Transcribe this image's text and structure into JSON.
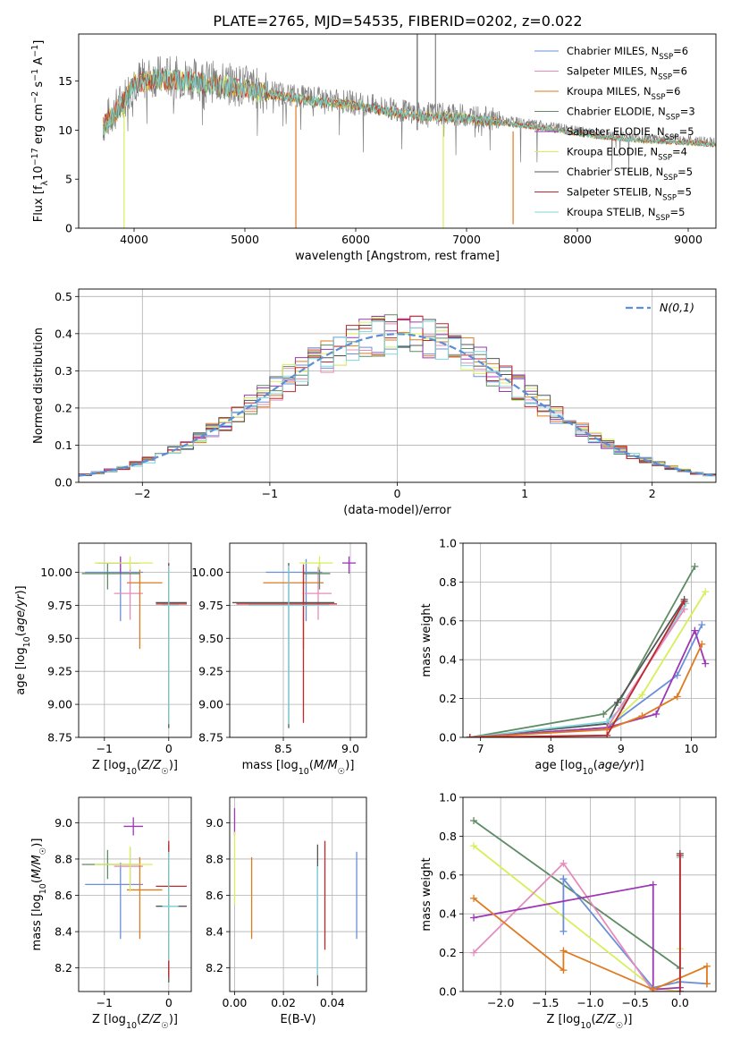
{
  "title": "PLATE=2765, MJD=54535, FIBERID=0202, z=0.022",
  "colors": {
    "chabrier_miles": "#6a8fd8",
    "salpeter_miles": "#e68cbd",
    "kroupa_miles": "#e07a1f",
    "chabrier_elodie": "#5e8c64",
    "salpeter_elodie": "#9c37b5",
    "kroupa_elodie": "#d6ef5a",
    "chabrier_stelib": "#555555",
    "salpeter_stelib": "#c0282d",
    "kroupa_stelib": "#7fd6dc",
    "data": "#808080",
    "gaussian": "#5b8fd6"
  },
  "chart_data": [
    {
      "id": "spectrum",
      "type": "line",
      "title": "PLATE=2765, MJD=54535, FIBERID=0202, z=0.022",
      "xlabel": "wavelength [Angstrom, rest frame]",
      "ylabel": "Flux [fλ10⁻¹⁷ erg cm⁻² s⁻¹ A⁻¹]",
      "xlim": [
        3500,
        9250
      ],
      "ylim": [
        0,
        19.8
      ],
      "xticks": [
        4000,
        5000,
        6000,
        7000,
        8000,
        9000
      ],
      "yticks": [
        0,
        5,
        10,
        15
      ],
      "grid": false,
      "legend_position": "top-right",
      "legend": [
        "Chabrier MILES, N_SSP=6",
        "Salpeter MILES, N_SSP=6",
        "Kroupa MILES, N_SSP=6",
        "Chabrier ELODIE, N_SSP=3",
        "Salpeter ELODIE, N_SSP=5",
        "Kroupa ELODIE, N_SSP=4",
        "Chabrier STELIB, N_SSP=5",
        "Salpeter STELIB, N_SSP=5",
        "Kroupa STELIB, N_SSP=5"
      ],
      "continuum": {
        "x": [
          3750,
          3900,
          4000,
          4200,
          4500,
          4800,
          5000,
          5300,
          5600,
          6000,
          6300,
          6600,
          7000,
          7400,
          7800,
          8200,
          8600,
          9000,
          9250
        ],
        "y": [
          11,
          13,
          15,
          15.5,
          15.3,
          14.8,
          14.5,
          13.8,
          13.3,
          12.8,
          12.2,
          11.7,
          11.5,
          10.9,
          10.3,
          9.6,
          9.2,
          9.0,
          8.8
        ]
      },
      "model_dips": [
        {
          "series": "Kroupa ELODIE",
          "x": 3910,
          "y": 0
        },
        {
          "series": "Kroupa MILES",
          "x": 5460,
          "y": 0
        },
        {
          "series": "Chabrier ELODIE",
          "x": 6790,
          "y": 0
        },
        {
          "series": "Kroupa MILES",
          "x": 7420,
          "y": 0.4
        }
      ]
    },
    {
      "id": "residuals",
      "type": "histogram",
      "xlabel": "(data-model)/error",
      "ylabel": "Normed distribution",
      "xlim": [
        -2.5,
        2.5
      ],
      "ylim": [
        0,
        0.52
      ],
      "xticks": [
        -2,
        -1,
        0,
        1,
        2
      ],
      "yticks": [
        0.0,
        0.1,
        0.2,
        0.3,
        0.4,
        0.5
      ],
      "grid": true,
      "legend_position": "top-right",
      "legend": [
        "N(0,1)"
      ],
      "bin_width": 0.1,
      "bins_from": -2.5,
      "bins_to": 2.5
    },
    {
      "id": "age_vs_Z",
      "type": "errorbar",
      "xlabel": "Z [log10(Z/Z☉)]",
      "ylabel": "age [log10(age/yr)]",
      "xlim": [
        -1.4,
        0.35
      ],
      "ylim": [
        8.75,
        10.22
      ],
      "xticks": [
        -1,
        0
      ],
      "yticks": [
        8.75,
        9.0,
        9.25,
        9.5,
        9.75,
        10.0
      ],
      "grid": true,
      "points": [
        {
          "series": "chabrier_miles",
          "x": -0.75,
          "y": 10.0,
          "xerr": [
            0.55,
            0.35
          ],
          "yerr": [
            0.37,
            0.1
          ]
        },
        {
          "series": "salpeter_miles",
          "x": -0.6,
          "y": 9.84,
          "xerr": [
            0.25,
            0.2
          ],
          "yerr": [
            0.2,
            0.2
          ]
        },
        {
          "series": "kroupa_miles",
          "x": -0.45,
          "y": 9.92,
          "xerr": [
            0.2,
            0.35
          ],
          "yerr": [
            0.5,
            0.1
          ]
        },
        {
          "series": "chabrier_elodie",
          "x": -0.95,
          "y": 9.99,
          "xerr": [
            0.4,
            0.5
          ],
          "yerr": [
            0.12,
            0.08
          ]
        },
        {
          "series": "salpeter_elodie",
          "x": -0.75,
          "y": 10.07,
          "xerr": [
            0.35,
            0.3
          ],
          "yerr": [
            0.08,
            0.05
          ]
        },
        {
          "series": "kroupa_elodie",
          "x": -0.6,
          "y": 10.07,
          "xerr": [
            0.55,
            0.35
          ],
          "yerr": [
            0.05,
            0.05
          ]
        },
        {
          "series": "chabrier_stelib",
          "x": 0.0,
          "y": 9.77,
          "xerr": [
            0.2,
            0.28
          ],
          "yerr": [
            0.95,
            0.3
          ]
        },
        {
          "series": "salpeter_stelib",
          "x": 0.0,
          "y": 9.76,
          "xerr": [
            0.2,
            0.28
          ],
          "yerr": [
            0.9,
            0.3
          ]
        },
        {
          "series": "kroupa_stelib",
          "x": 0.0,
          "y": 9.75,
          "xerr": [
            0.1,
            0.15
          ],
          "yerr": [
            0.9,
            0.3
          ]
        }
      ]
    },
    {
      "id": "age_vs_mass",
      "type": "errorbar",
      "xlabel": "mass [log10(M/M☉)]",
      "ylabel": "",
      "xlim": [
        8.1,
        9.12
      ],
      "ylim": [
        8.75,
        10.22
      ],
      "xticks": [
        8.5,
        9.0
      ],
      "yticks": [
        8.75,
        9.0,
        9.25,
        9.5,
        9.75,
        10.0
      ],
      "grid": true,
      "points": [
        {
          "series": "chabrier_miles",
          "x": 8.67,
          "y": 10.0,
          "xerr": [
            0.3,
            0.12
          ],
          "yerr": [
            0.37,
            0.1
          ]
        },
        {
          "series": "salpeter_miles",
          "x": 8.76,
          "y": 9.84,
          "xerr": [
            0.1,
            0.1
          ],
          "yerr": [
            0.2,
            0.2
          ]
        },
        {
          "series": "kroupa_miles",
          "x": 8.65,
          "y": 9.92,
          "xerr": [
            0.3,
            0.15
          ],
          "yerr": [
            0.5,
            0.1
          ]
        },
        {
          "series": "chabrier_elodie",
          "x": 8.77,
          "y": 9.99,
          "xerr": [
            0.12,
            0.08
          ],
          "yerr": [
            0.12,
            0.08
          ]
        },
        {
          "series": "salpeter_elodie",
          "x": 8.99,
          "y": 10.07,
          "xerr": [
            0.05,
            0.05
          ],
          "yerr": [
            0.08,
            0.05
          ]
        },
        {
          "series": "kroupa_elodie",
          "x": 8.77,
          "y": 10.07,
          "xerr": [
            0.15,
            0.1
          ],
          "yerr": [
            0.05,
            0.05
          ]
        },
        {
          "series": "chabrier_stelib",
          "x": 8.54,
          "y": 9.77,
          "xerr": [
            0.42,
            0.34
          ],
          "yerr": [
            0.95,
            0.3
          ]
        },
        {
          "series": "salpeter_stelib",
          "x": 8.65,
          "y": 9.76,
          "xerr": [
            0.5,
            0.25
          ],
          "yerr": [
            0.9,
            0.3
          ]
        },
        {
          "series": "kroupa_stelib",
          "x": 8.54,
          "y": 9.75,
          "xerr": [
            0.3,
            0.3
          ],
          "yerr": [
            0.9,
            0.3
          ]
        }
      ]
    },
    {
      "id": "weight_vs_age",
      "type": "line",
      "xlabel": "age [log10(age/yr)]",
      "ylabel": "mass weight",
      "xlim": [
        6.75,
        10.35
      ],
      "ylim": [
        0,
        1.0
      ],
      "xticks": [
        7,
        8,
        9,
        10
      ],
      "yticks": [
        0.0,
        0.2,
        0.4,
        0.6,
        0.8,
        1.0
      ],
      "grid": true,
      "series": [
        {
          "key": "chabrier_elodie",
          "x": [
            6.85,
            8.75,
            9.0,
            10.05
          ],
          "y": [
            0.0,
            0.12,
            0.2,
            0.88
          ]
        },
        {
          "key": "chabrier_stelib",
          "x": [
            6.85,
            8.8,
            8.95,
            9.9
          ],
          "y": [
            0.0,
            0.07,
            0.18,
            0.71
          ]
        },
        {
          "key": "kroupa_stelib",
          "x": [
            6.85,
            8.8,
            9.0,
            9.92
          ],
          "y": [
            0.0,
            0.08,
            0.15,
            0.69
          ]
        },
        {
          "key": "kroupa_elodie",
          "x": [
            6.85,
            8.8,
            9.3,
            10.2
          ],
          "y": [
            0.0,
            0.05,
            0.22,
            0.75
          ]
        },
        {
          "key": "chabrier_miles",
          "x": [
            6.85,
            8.8,
            9.8,
            10.15
          ],
          "y": [
            0.0,
            0.05,
            0.32,
            0.58
          ]
        },
        {
          "key": "salpeter_miles",
          "x": [
            6.85,
            8.8,
            9.9
          ],
          "y": [
            0.0,
            0.05,
            0.66
          ]
        },
        {
          "key": "salpeter_elodie",
          "x": [
            6.85,
            8.8,
            9.5,
            10.05,
            10.2
          ],
          "y": [
            0.0,
            0.05,
            0.12,
            0.55,
            0.38
          ]
        },
        {
          "key": "kroupa_miles",
          "x": [
            6.85,
            8.8,
            9.3,
            9.8,
            10.15
          ],
          "y": [
            0.0,
            0.04,
            0.11,
            0.21,
            0.48
          ]
        },
        {
          "key": "salpeter_stelib",
          "x": [
            6.85,
            8.8,
            9.9
          ],
          "y": [
            0.0,
            0.01,
            0.7
          ]
        }
      ]
    },
    {
      "id": "mass_vs_Z",
      "type": "errorbar",
      "xlabel": "Z [log10(Z/Z☉)]",
      "ylabel": "mass [log10(M/M☉)]",
      "xlim": [
        -1.4,
        0.35
      ],
      "ylim": [
        8.07,
        9.14
      ],
      "xticks": [
        -1,
        0
      ],
      "yticks": [
        8.2,
        8.4,
        8.6,
        8.8,
        9.0
      ],
      "grid": true,
      "points": [
        {
          "series": "chabrier_miles",
          "x": -0.75,
          "y": 8.66,
          "xerr": [
            0.55,
            0.35
          ],
          "yerr": [
            0.3,
            0.12
          ]
        },
        {
          "series": "salpeter_miles",
          "x": -0.6,
          "y": 8.76,
          "xerr": [
            0.25,
            0.2
          ],
          "yerr": [
            0.1,
            0.1
          ]
        },
        {
          "series": "kroupa_miles",
          "x": -0.45,
          "y": 8.63,
          "xerr": [
            0.2,
            0.35
          ],
          "yerr": [
            0.27,
            0.18
          ]
        },
        {
          "series": "chabrier_elodie",
          "x": -0.95,
          "y": 8.77,
          "xerr": [
            0.4,
            0.5
          ],
          "yerr": [
            0.08,
            0.08
          ]
        },
        {
          "series": "salpeter_elodie",
          "x": -0.55,
          "y": 8.98,
          "xerr": [
            0.15,
            0.15
          ],
          "yerr": [
            0.05,
            0.05
          ]
        },
        {
          "series": "kroupa_elodie",
          "x": -0.6,
          "y": 8.77,
          "xerr": [
            0.55,
            0.35
          ],
          "yerr": [
            0.15,
            0.1
          ]
        },
        {
          "series": "chabrier_stelib",
          "x": 0.0,
          "y": 8.54,
          "xerr": [
            0.2,
            0.28
          ],
          "yerr": [
            0.42,
            0.34
          ]
        },
        {
          "series": "salpeter_stelib",
          "x": 0.0,
          "y": 8.65,
          "xerr": [
            0.2,
            0.28
          ],
          "yerr": [
            0.5,
            0.25
          ]
        },
        {
          "series": "kroupa_stelib",
          "x": 0.0,
          "y": 8.54,
          "xerr": [
            0.1,
            0.15
          ],
          "yerr": [
            0.3,
            0.3
          ]
        }
      ]
    },
    {
      "id": "mass_vs_ebv",
      "type": "errorbar",
      "xlabel": "E(B-V)",
      "ylabel": "",
      "xlim": [
        -0.002,
        0.054
      ],
      "ylim": [
        8.07,
        9.14
      ],
      "xticks": [
        0.0,
        0.02,
        0.04
      ],
      "yticks": [
        8.2,
        8.4,
        8.6,
        8.8,
        9.0
      ],
      "grid": true,
      "points": [
        {
          "series": "chabrier_miles",
          "x": 0.05,
          "y": 8.6,
          "xerr": [
            0,
            0
          ],
          "yerr": [
            0.24,
            0.24
          ]
        },
        {
          "series": "kroupa_miles",
          "x": 0.007,
          "y": 8.58,
          "xerr": [
            0,
            0
          ],
          "yerr": [
            0.22,
            0.23
          ]
        },
        {
          "series": "salpeter_elodie",
          "x": 0.0,
          "y": 8.98,
          "xerr": [
            0,
            0
          ],
          "yerr": [
            0.05,
            0.1
          ]
        },
        {
          "series": "kroupa_elodie",
          "x": 0.0,
          "y": 8.75,
          "xerr": [
            0,
            0
          ],
          "yerr": [
            0.2,
            0.2
          ]
        },
        {
          "series": "chabrier_stelib",
          "x": 0.034,
          "y": 8.5,
          "xerr": [
            0,
            0
          ],
          "yerr": [
            0.4,
            0.38
          ]
        },
        {
          "series": "salpeter_stelib",
          "x": 0.037,
          "y": 8.6,
          "xerr": [
            0,
            0
          ],
          "yerr": [
            0.3,
            0.3
          ]
        },
        {
          "series": "kroupa_stelib",
          "x": 0.034,
          "y": 8.46,
          "xerr": [
            0,
            0
          ],
          "yerr": [
            0.3,
            0.3
          ]
        }
      ]
    },
    {
      "id": "weight_vs_Z",
      "type": "line",
      "xlabel": "Z [log10(Z/Z☉)]",
      "ylabel": "mass weight",
      "xlim": [
        -2.42,
        0.4
      ],
      "ylim": [
        0,
        1.0
      ],
      "xticks": [
        -2.0,
        -1.5,
        -1.0,
        -0.5,
        0.0
      ],
      "yticks": [
        0.0,
        0.2,
        0.4,
        0.6,
        0.8,
        1.0
      ],
      "grid": true,
      "series": [
        {
          "key": "chabrier_elodie",
          "x": [
            -2.3,
            0.0,
            0.0
          ],
          "y": [
            0.88,
            0.12,
            0.0
          ]
        },
        {
          "key": "kroupa_elodie",
          "x": [
            -2.3,
            -0.3,
            0.0,
            0.0
          ],
          "y": [
            0.75,
            0.02,
            0.0,
            0.22
          ]
        },
        {
          "key": "chabrier_miles",
          "x": [
            -1.3,
            -1.3,
            -1.3,
            -0.3,
            0.0,
            0.3
          ],
          "y": [
            0.31,
            0.58,
            0.58,
            0.02,
            0.05,
            0.04
          ]
        },
        {
          "key": "salpeter_miles",
          "x": [
            -2.3,
            -1.3,
            -0.3,
            0.0
          ],
          "y": [
            0.2,
            0.66,
            0.0,
            0.0
          ]
        },
        {
          "key": "salpeter_elodie",
          "x": [
            -2.3,
            -0.3,
            -0.3,
            0.0
          ],
          "y": [
            0.38,
            0.55,
            0.01,
            0.02
          ]
        },
        {
          "key": "kroupa_miles",
          "x": [
            -2.3,
            -1.3,
            -1.3,
            -0.3,
            0.3,
            0.3
          ],
          "y": [
            0.48,
            0.11,
            0.21,
            0.01,
            0.13,
            0.04
          ]
        },
        {
          "key": "chabrier_stelib",
          "x": [
            0.0,
            0.0
          ],
          "y": [
            0.0,
            0.71
          ]
        },
        {
          "key": "kroupa_stelib",
          "x": [
            0.0,
            0.0
          ],
          "y": [
            0.0,
            0.69
          ]
        },
        {
          "key": "salpeter_stelib",
          "x": [
            0.0,
            0.0
          ],
          "y": [
            0.0,
            0.7
          ]
        }
      ]
    }
  ]
}
